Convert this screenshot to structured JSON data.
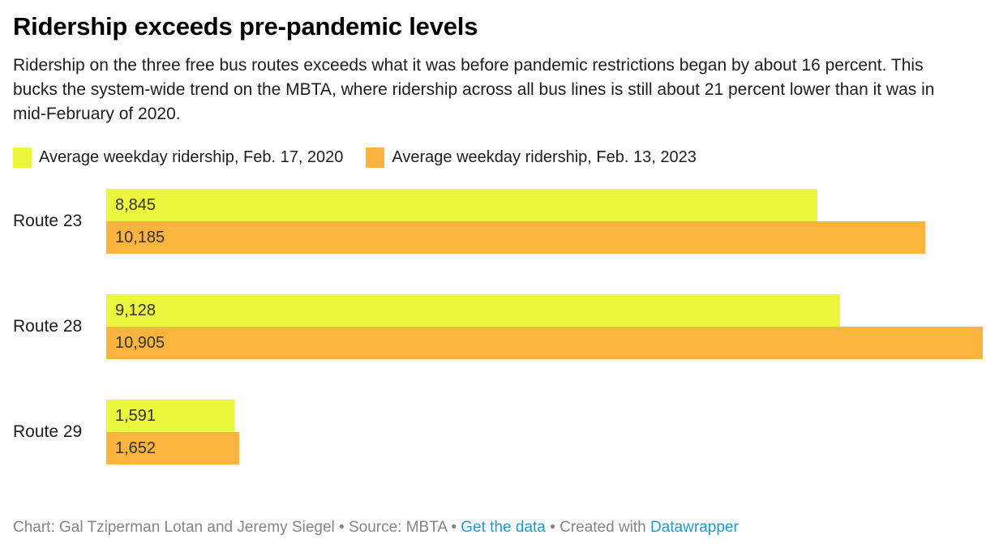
{
  "header": {
    "title": "Ridership exceeds pre-pandemic levels",
    "description": "Ridership on the three free bus routes exceeds what it was before pandemic restrictions began by about 16 percent. This bucks the system-wide trend on the MBTA, where ridership across all bus lines is still about 21 percent lower than it was in mid-February of 2020."
  },
  "legend": [
    {
      "label": "Average weekday ridership, Feb. 17, 2020",
      "color": "#ecf63c"
    },
    {
      "label": "Average weekday ridership, Feb. 13, 2023",
      "color": "#fdb43e"
    }
  ],
  "chart_data": {
    "type": "bar",
    "orientation": "horizontal",
    "categories": [
      "Route 23",
      "Route 28",
      "Route 29"
    ],
    "series": [
      {
        "name": "Average weekday ridership, Feb. 17, 2020",
        "color": "#ecf63c",
        "values": [
          8845,
          9128,
          1591
        ]
      },
      {
        "name": "Average weekday ridership, Feb. 13, 2023",
        "color": "#fdb43e",
        "values": [
          10185,
          10905,
          1652
        ]
      }
    ],
    "labels": [
      [
        "8,845",
        "10,185"
      ],
      [
        "9,128",
        "10,905"
      ],
      [
        "1,591",
        "1,652"
      ]
    ],
    "xmax": 10905,
    "grid": false,
    "legend_position": "top",
    "value_label_color": "#333333"
  },
  "footer": {
    "byline": "Chart: Gal Tziperman Lotan and Jeremy Siegel",
    "sep1": " • ",
    "source_text": "Source: MBTA",
    "sep2": " • ",
    "get_data_link": "Get the data",
    "sep3": " • ",
    "created_with": "Created with ",
    "tool_link": "Datawrapper",
    "link_color": "#1d9bd1",
    "text_color": "#858585"
  }
}
